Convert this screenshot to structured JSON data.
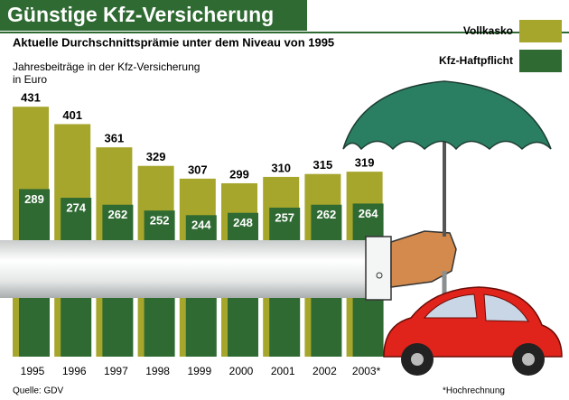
{
  "chart_data": {
    "type": "bar",
    "title": "Günstige Kfz-Versicherung",
    "subtitle": "Aktuelle Durchschnittsprämie unter dem Niveau von 1995",
    "ylabel": [
      "Jahresbeiträge in der Kfz-Versicherung",
      "in Euro"
    ],
    "categories": [
      "1995",
      "1996",
      "1997",
      "1998",
      "1999",
      "2000",
      "2001",
      "2002",
      "2003*"
    ],
    "series": [
      {
        "name": "Vollkasko",
        "color": "#a6a52c",
        "values": [
          431,
          401,
          361,
          329,
          307,
          299,
          310,
          315,
          319
        ]
      },
      {
        "name": "Kfz-Haftpflicht",
        "color": "#2f6a33",
        "values": [
          289,
          274,
          262,
          252,
          244,
          248,
          257,
          262,
          264
        ]
      }
    ],
    "ylim": [
      0,
      450
    ],
    "source": "Quelle: GDV",
    "note": "*Hochrechnung"
  }
}
